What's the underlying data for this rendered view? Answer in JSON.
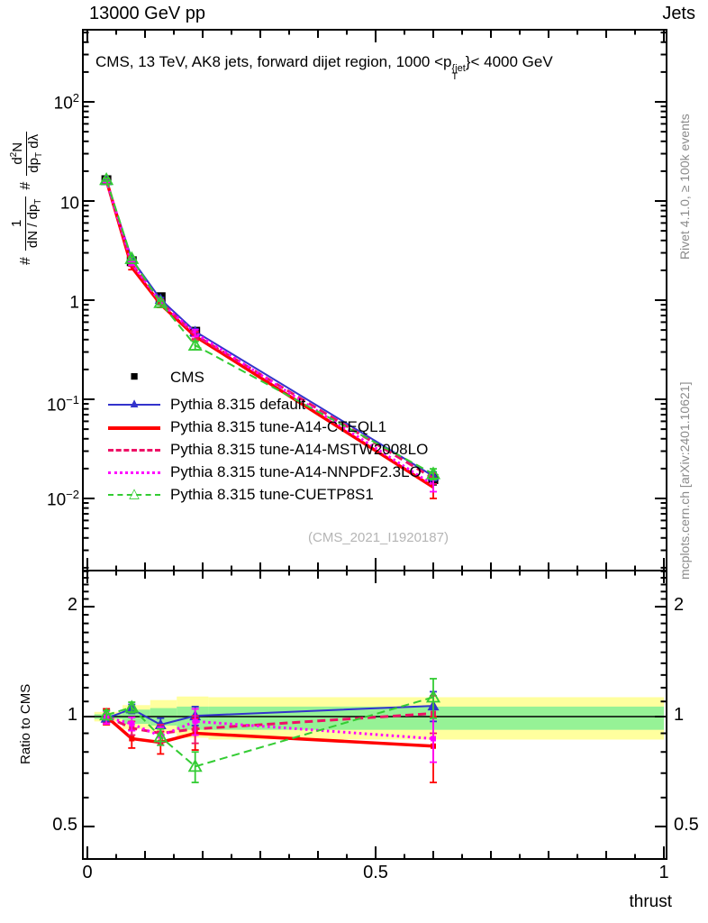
{
  "header": {
    "left": "13000 GeV pp",
    "right": "Jets"
  },
  "side_notes": {
    "top_right": "Rivet 4.1.0, ≥ 100k events",
    "bottom_right": "mcplots.cern.ch [arXiv:2401.10621]"
  },
  "main_panel": {
    "title_parts": {
      "pre": "CMS, 13 TeV, AK8 jets, forward dijet region, 1000 <p",
      "sup": "{jet",
      "sub": "T",
      "post": "}< 4000 GeV"
    },
    "ylabel_parts": {
      "hash1": "#",
      "num1": "1",
      "den1a": "dN / dp",
      "den1_sub": "T",
      "hash2": "#",
      "num2a": "d",
      "num2_sup": "2",
      "num2b": "N",
      "den2a": "dp",
      "den2_sub": "T",
      "den2b": " dλ"
    },
    "y_tick_labels": [
      {
        "base": "10",
        "exp": "2"
      },
      {
        "base": "10",
        "exp": ""
      },
      {
        "base": "1",
        "exp": ""
      },
      {
        "base": "10",
        "exp": "−1"
      },
      {
        "base": "10",
        "exp": "−2"
      }
    ],
    "watermark": "(CMS_2021_I1920187)"
  },
  "ratio_panel": {
    "ylabel": "Ratio to CMS",
    "y_tick_labels": [
      "2",
      "1",
      "0.5"
    ]
  },
  "x_axis": {
    "tick_labels": [
      "0",
      "0.5",
      "1"
    ],
    "label": "thrust"
  },
  "legend": [
    {
      "label": "CMS",
      "color": "#000000",
      "marker": "square-filled",
      "line": "none",
      "line_width": 0
    },
    {
      "label": "Pythia 8.315 default",
      "color": "#3333cc",
      "marker": "triangle-filled",
      "line": "solid",
      "line_width": 2
    },
    {
      "label": "Pythia 8.315 tune-A14-CTEQL1",
      "color": "#ff0000",
      "marker": "none",
      "line": "solid",
      "line_width": 4
    },
    {
      "label": "Pythia 8.315 tune-A14-MSTW2008LO",
      "color": "#ee1166",
      "marker": "none",
      "line": "dashed",
      "line_width": 3
    },
    {
      "label": "Pythia 8.315 tune-A14-NNPDF2.3LO",
      "color": "#ff00ff",
      "marker": "none",
      "line": "dotted",
      "line_width": 3
    },
    {
      "label": "Pythia 8.315 tune-CUETP8S1",
      "color": "#33cc33",
      "marker": "triangle-open",
      "line": "dashed",
      "line_width": 2
    }
  ],
  "chart_data": {
    "type": "line",
    "title": "CMS, 13 TeV, AK8 jets, forward dijet region, 1000 < pT{jet} < 4000 GeV",
    "xlabel": "thrust",
    "ylabel": "# 1/(dN/dpT) # d2N/(dpT dlambda)",
    "ylabel_ratio": "Ratio to CMS",
    "x": [
      0.033,
      0.077,
      0.127,
      0.187,
      0.6
    ],
    "xlim": [
      0,
      1
    ],
    "main": {
      "ylog": true,
      "ylim": [
        0.0019,
        530
      ],
      "y_ticks": [
        100,
        10,
        1,
        0.1,
        0.01
      ],
      "cms": {
        "name": "CMS",
        "color": "#000000",
        "marker": "square-filled",
        "values": [
          16.2,
          2.47,
          1.07,
          0.48,
          0.0157
        ],
        "errors": [
          0.5,
          0.1,
          0.05,
          0.025,
          0.002
        ]
      },
      "series": [
        {
          "name": "Pythia 8.315 default",
          "color": "#3333cc",
          "dash": "solid",
          "width": 2,
          "marker": "triangle-filled",
          "values": [
            16.0,
            2.59,
            1.02,
            0.483,
            0.0168
          ],
          "errors": [
            0.4,
            0.08,
            0.043,
            0.029,
            0.0017
          ]
        },
        {
          "name": "Pythia 8.315 tune-A14-CTEQL1",
          "color": "#ff0000",
          "dash": "solid",
          "width": 3.5,
          "marker": "none",
          "values": [
            16.2,
            2.15,
            0.91,
            0.432,
            0.013
          ],
          "errors": [
            0.8,
            0.12,
            0.065,
            0.043,
            0.003
          ]
        },
        {
          "name": "Pythia 8.315 tune-A14-MSTW2008LO",
          "color": "#ee1166",
          "dash": "dashed",
          "width": 3,
          "marker": "none",
          "values": [
            16.1,
            2.3,
            0.963,
            0.444,
            0.016
          ],
          "errors": [
            0.65,
            0.1,
            0.054,
            0.038,
            0.002
          ]
        },
        {
          "name": "Pythia 8.315 tune-A14-NNPDF2.3LO",
          "color": "#ff00ff",
          "dash": "dotted",
          "width": 3,
          "marker": "none",
          "values": [
            16.1,
            2.36,
            0.947,
            0.466,
            0.0137
          ],
          "errors": [
            0.65,
            0.1,
            0.054,
            0.038,
            0.002
          ]
        },
        {
          "name": "Pythia 8.315 tune-CUETP8S1",
          "color": "#33cc33",
          "dash": "dashed",
          "width": 2,
          "marker": "triangle-open",
          "values": [
            16.4,
            2.62,
            0.942,
            0.35,
            0.0177
          ],
          "errors": [
            0.5,
            0.09,
            0.048,
            0.034,
            0.0022
          ]
        }
      ]
    },
    "ratio": {
      "ylog": true,
      "ylim": [
        0.41,
        2.5
      ],
      "y_ticks": [
        0.5,
        1,
        2
      ],
      "baseline": 1,
      "series": [
        {
          "name": "Pythia 8.315 default",
          "color": "#3333cc",
          "dash": "solid",
          "width": 2,
          "marker": "triangle-filled",
          "values": [
            0.99,
            1.05,
            0.95,
            1.005,
            1.07
          ],
          "errors": [
            0.025,
            0.03,
            0.04,
            0.06,
            0.1
          ]
        },
        {
          "name": "Pythia 8.315 tune-A14-CTEQL1",
          "color": "#ff0000",
          "dash": "solid",
          "width": 3.5,
          "marker": "square-small",
          "values": [
            1.0,
            0.87,
            0.85,
            0.9,
            0.83
          ],
          "errors": [
            0.05,
            0.05,
            0.06,
            0.09,
            0.17
          ]
        },
        {
          "name": "Pythia 8.315 tune-A14-MSTW2008LO",
          "color": "#ee1166",
          "dash": "dashed",
          "width": 3,
          "marker": "square-small",
          "values": [
            1.0,
            0.93,
            0.9,
            0.925,
            1.02
          ],
          "errors": [
            0.04,
            0.04,
            0.05,
            0.08,
            0.12
          ]
        },
        {
          "name": "Pythia 8.315 tune-A14-NNPDF2.3LO",
          "color": "#ff00ff",
          "dash": "dotted",
          "width": 3,
          "marker": "square-small",
          "values": [
            0.995,
            0.955,
            0.885,
            0.97,
            0.87
          ],
          "errors": [
            0.04,
            0.04,
            0.05,
            0.08,
            0.12
          ]
        },
        {
          "name": "Pythia 8.315 tune-CUETP8S1",
          "color": "#33cc33",
          "dash": "dashed",
          "width": 2,
          "marker": "triangle-open",
          "values": [
            1.01,
            1.06,
            0.88,
            0.73,
            1.13
          ],
          "errors": [
            0.03,
            0.035,
            0.045,
            0.07,
            0.14
          ]
        }
      ],
      "bands": {
        "yellow": {
          "color": "#ffff9e",
          "segments": [
            [
              0.012,
              0.061,
              0.97,
              1.03
            ],
            [
              0.061,
              0.109,
              0.925,
              1.075
            ],
            [
              0.109,
              0.155,
              0.9,
              1.11
            ],
            [
              0.155,
              0.21,
              0.875,
              1.135
            ],
            [
              0.21,
              1.0,
              0.865,
              1.13
            ]
          ]
        },
        "green": {
          "color": "#96f296",
          "segments": [
            [
              0.012,
              0.061,
              0.985,
              1.015
            ],
            [
              0.061,
              0.109,
              0.955,
              1.045
            ],
            [
              0.109,
              0.155,
              0.945,
              1.055
            ],
            [
              0.155,
              0.21,
              0.92,
              1.065
            ],
            [
              0.21,
              1.0,
              0.92,
              1.065
            ]
          ]
        }
      }
    }
  }
}
